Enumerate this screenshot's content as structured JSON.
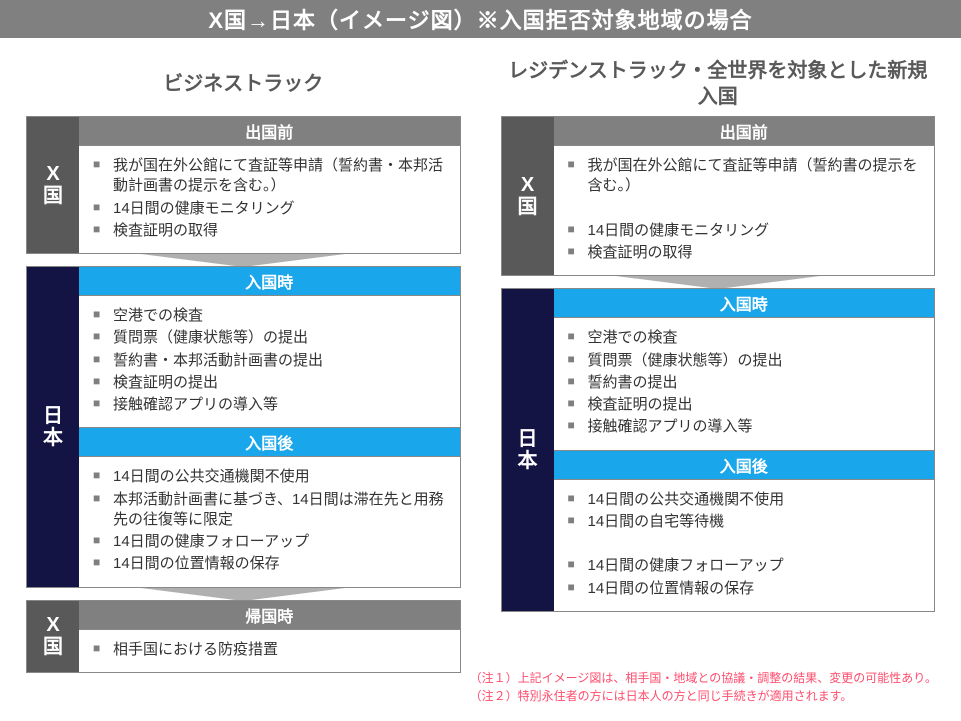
{
  "title": "X国→日本（イメージ図）※入国拒否対象地域の場合",
  "title_bar_bg": "#808080",
  "title_fontsize": 22,
  "heading_fontsize": 20,
  "vlabel_fontsize": 20,
  "section_head_fontsize": 16,
  "item_fontsize": 15,
  "note_fontsize": 12,
  "vlabel_width": 52,
  "arrow_color": "#b0b0b0",
  "colors": {
    "gray_block": "#595959",
    "gray_header": "#808080",
    "navy_block": "#141444",
    "blue_header": "#1aa6ea",
    "heading_text": "#595959",
    "note_text": "#ff4d6d"
  },
  "left": {
    "heading": "ビジネストラック",
    "blocks": [
      {
        "label": "X国",
        "label_bg": "#595959",
        "sections": [
          {
            "header": "出国前",
            "header_bg": "#808080",
            "items": [
              "我が国在外公館にて査証等申請（誓約書・本邦活動計画書の提示を含む。）",
              "14日間の健康モニタリング",
              "検査証明の取得"
            ]
          }
        ]
      },
      {
        "label": "日本",
        "label_bg": "#141444",
        "sections": [
          {
            "header": "入国時",
            "header_bg": "#1aa6ea",
            "items": [
              "空港での検査",
              "質問票（健康状態等）の提出",
              "誓約書・本邦活動計画書の提出",
              "検査証明の提出",
              "接触確認アプリの導入等"
            ]
          },
          {
            "header": "入国後",
            "header_bg": "#1aa6ea",
            "items": [
              "14日間の公共交通機関不使用",
              "本邦活動計画書に基づき、14日間は滞在先と用務先の往復等に限定",
              "14日間の健康フォローアップ",
              "14日間の位置情報の保存"
            ]
          }
        ]
      },
      {
        "label": "X国",
        "label_bg": "#595959",
        "sections": [
          {
            "header": "帰国時",
            "header_bg": "#808080",
            "items": [
              "相手国における防疫措置"
            ]
          }
        ]
      }
    ]
  },
  "right": {
    "heading": "レジデンストラック・全世界を対象とした新規入国",
    "blocks": [
      {
        "label": "X国",
        "label_bg": "#595959",
        "sections": [
          {
            "header": "出国前",
            "header_bg": "#808080",
            "items": [
              "我が国在外公館にて査証等申請（誓約書の提示を含む。）",
              "",
              "14日間の健康モニタリング",
              "検査証明の取得"
            ]
          }
        ]
      },
      {
        "label": "日本",
        "label_bg": "#141444",
        "sections": [
          {
            "header": "入国時",
            "header_bg": "#1aa6ea",
            "items": [
              "空港での検査",
              "質問票（健康状態等）の提出",
              "誓約書の提出",
              "検査証明の提出",
              "接触確認アプリの導入等"
            ]
          },
          {
            "header": "入国後",
            "header_bg": "#1aa6ea",
            "items": [
              "14日間の公共交通機関不使用",
              "14日間の自宅等待機",
              "",
              "14日間の健康フォローアップ",
              "14日間の位置情報の保存"
            ]
          }
        ]
      }
    ]
  },
  "notes": [
    "（注１）上記イメージ図は、相手国・地域との協議・調整の結果、変更の可能性あり。",
    "（注２）特別永住者の方には日本人の方と同じ手続きが適用されます。"
  ]
}
